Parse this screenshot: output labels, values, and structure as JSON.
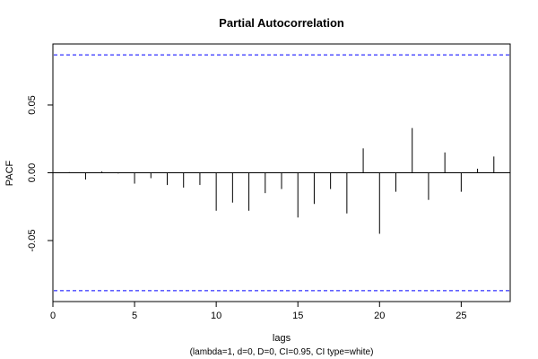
{
  "chart_data": {
    "type": "bar",
    "title": "Partial Autocorrelation",
    "xlabel": "lags",
    "subtitle": "(lambda=1, d=0, D=0, CI=0.95, CI type=white)",
    "ylabel": "PACF",
    "xlim": [
      0,
      28
    ],
    "ylim": [
      -0.095,
      0.095
    ],
    "x_ticks": [
      0,
      5,
      10,
      15,
      20,
      25
    ],
    "y_ticks": [
      -0.05,
      0.0,
      0.05
    ],
    "y_tick_labels": [
      "-0.05",
      "0.00",
      "0.05"
    ],
    "ci_bounds": [
      0.087,
      -0.087
    ],
    "ci_color": "#0000ff",
    "lags": [
      1,
      2,
      3,
      4,
      5,
      6,
      7,
      8,
      9,
      10,
      11,
      12,
      13,
      14,
      15,
      16,
      17,
      18,
      19,
      20,
      21,
      22,
      23,
      24,
      25,
      26,
      27
    ],
    "values": [
      0.0005,
      -0.005,
      0.001,
      -0.0005,
      -0.008,
      -0.004,
      -0.009,
      -0.011,
      -0.009,
      -0.028,
      -0.022,
      -0.028,
      -0.015,
      -0.012,
      -0.033,
      -0.023,
      -0.012,
      -0.03,
      0.018,
      -0.045,
      -0.014,
      0.033,
      -0.02,
      0.015,
      -0.014,
      0.003,
      0.012
    ]
  }
}
